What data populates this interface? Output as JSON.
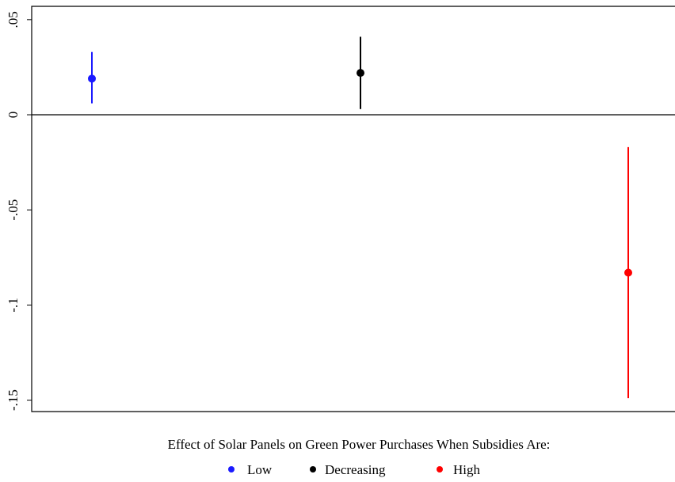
{
  "chart_data": {
    "type": "errorbar",
    "xlabel": "Effect of Solar Panels on Green Power Purchases When Subsidies Are:",
    "ylim": [
      -0.156,
      0.057
    ],
    "yticks": [
      {
        "value": 0.05,
        "label": ".05"
      },
      0,
      {
        "value": -0.05,
        "label": "-.05"
      },
      {
        "value": -0.1,
        "label": "-.1"
      },
      {
        "value": -0.15,
        "label": "-.15"
      }
    ],
    "zero_line": true,
    "series": [
      {
        "name": "Low",
        "color": "#1a1aff",
        "values": [
          0.019
        ],
        "lower": [
          0.006
        ],
        "upper": [
          0.033
        ]
      },
      {
        "name": "Decreasing",
        "color": "#000000",
        "values": [
          0.022
        ],
        "lower": [
          0.003
        ],
        "upper": [
          0.041
        ]
      },
      {
        "name": "High",
        "color": "#ff0000",
        "values": [
          -0.083
        ],
        "lower": [
          -0.149
        ],
        "upper": [
          -0.017
        ]
      }
    ]
  }
}
